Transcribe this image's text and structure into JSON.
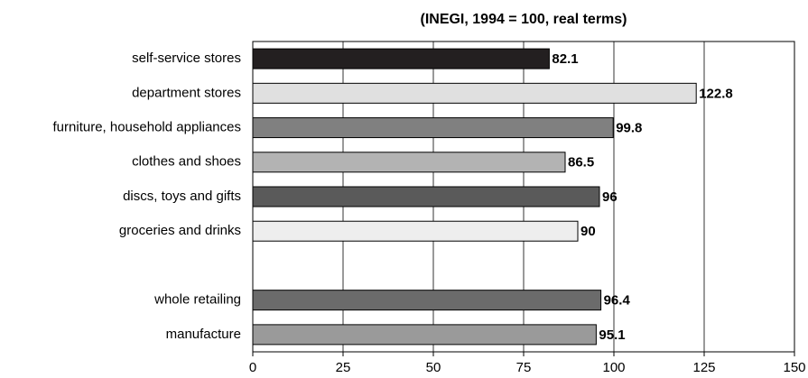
{
  "chart_data": {
    "type": "bar",
    "orientation": "horizontal",
    "title": "(INEGI, 1994 = 100, real terms)",
    "categories": [
      "self-service stores",
      "department stores",
      "furniture, household appliances",
      "clothes and shoes",
      "discs, toys and gifts",
      "groceries and drinks",
      null,
      "whole retailing",
      "manufacture"
    ],
    "values": [
      82.1,
      122.8,
      99.8,
      86.5,
      96,
      90,
      null,
      96.4,
      95.1
    ],
    "colors": [
      "#231f20",
      "#e0e0e0",
      "#808080",
      "#b3b3b3",
      "#5a5a5a",
      "#eeeeee",
      null,
      "#6b6b6b",
      "#9a9a9a"
    ],
    "xlim": [
      0,
      150
    ],
    "xticks": [
      0,
      25,
      50,
      75,
      100,
      125,
      150
    ],
    "grid": true
  }
}
